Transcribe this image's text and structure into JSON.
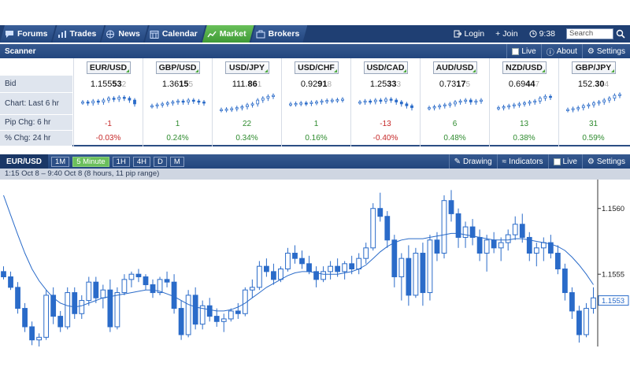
{
  "nav": {
    "tabs": [
      {
        "label": "Forums",
        "icon": "forums-icon"
      },
      {
        "label": "Trades",
        "icon": "trades-icon"
      },
      {
        "label": "News",
        "icon": "globe-icon"
      },
      {
        "label": "Calendar",
        "icon": "calendar-icon"
      },
      {
        "label": "Market",
        "icon": "market-chart-icon",
        "active": true
      },
      {
        "label": "Brokers",
        "icon": "brokers-icon"
      }
    ],
    "login": "Login",
    "join": "Join",
    "time": "9:38",
    "search_placeholder": "Search"
  },
  "scanner": {
    "title": "Scanner",
    "live": "Live",
    "about": "About",
    "settings": "Settings",
    "row_labels": [
      "Bid",
      "Chart: Last 6 hr",
      "Pip Chg: 6 hr",
      "% Chg: 24 hr"
    ],
    "pairs": [
      {
        "symbol": "EUR/USD",
        "bid_main": "1.155",
        "bid_pip": "53",
        "bid_tail": "2",
        "pip_chg": "-1",
        "pct_chg": "-0.03%",
        "spark": [
          0.5,
          0.45,
          0.55,
          0.5,
          0.6,
          0.7,
          0.65,
          0.75,
          0.7,
          0.6,
          0.4
        ]
      },
      {
        "symbol": "GBP/USD",
        "bid_main": "1.36",
        "bid_pip": "15",
        "bid_tail": "5",
        "pip_chg": "1",
        "pct_chg": "0.24%",
        "spark": [
          0.3,
          0.35,
          0.4,
          0.45,
          0.5,
          0.55,
          0.5,
          0.6,
          0.55,
          0.5,
          0.45
        ]
      },
      {
        "symbol": "USD/JPY",
        "bid_main": "111.",
        "bid_pip": "86",
        "bid_tail": "1",
        "pip_chg": "22",
        "pct_chg": "0.34%",
        "spark": [
          0.1,
          0.12,
          0.15,
          0.2,
          0.25,
          0.35,
          0.4,
          0.6,
          0.7,
          0.8,
          0.85
        ]
      },
      {
        "symbol": "USD/CHF",
        "bid_main": "0.92",
        "bid_pip": "91",
        "bid_tail": "8",
        "pip_chg": "1",
        "pct_chg": "0.16%",
        "spark": [
          0.4,
          0.42,
          0.45,
          0.43,
          0.48,
          0.5,
          0.55,
          0.58,
          0.6,
          0.62,
          0.65
        ]
      },
      {
        "symbol": "USD/CAD",
        "bid_main": "1.25",
        "bid_pip": "33",
        "bid_tail": "3",
        "pip_chg": "-13",
        "pct_chg": "-0.40%",
        "spark": [
          0.5,
          0.55,
          0.52,
          0.6,
          0.55,
          0.65,
          0.6,
          0.5,
          0.4,
          0.3,
          0.2
        ]
      },
      {
        "symbol": "AUD/USD",
        "bid_main": "0.73",
        "bid_pip": "17",
        "bid_tail": "5",
        "pip_chg": "6",
        "pct_chg": "0.48%",
        "spark": [
          0.2,
          0.25,
          0.3,
          0.35,
          0.4,
          0.5,
          0.55,
          0.6,
          0.5,
          0.55,
          0.6
        ]
      },
      {
        "symbol": "NZD/USD",
        "bid_main": "0.69",
        "bid_pip": "44",
        "bid_tail": "7",
        "pip_chg": "13",
        "pct_chg": "0.38%",
        "spark": [
          0.2,
          0.25,
          0.3,
          0.35,
          0.4,
          0.45,
          0.5,
          0.55,
          0.7,
          0.8,
          0.75
        ]
      },
      {
        "symbol": "GBP/JPY",
        "bid_main": "152.",
        "bid_pip": "30",
        "bid_tail": "4",
        "pip_chg": "31",
        "pct_chg": "0.59%",
        "spark": [
          0.1,
          0.15,
          0.2,
          0.3,
          0.35,
          0.45,
          0.5,
          0.6,
          0.7,
          0.85,
          0.9
        ]
      }
    ]
  },
  "chart_toolbar": {
    "pair": "EUR/USD",
    "timeframes": [
      {
        "label": "1M"
      },
      {
        "label": "5 Minute",
        "active": true
      },
      {
        "label": "1H"
      },
      {
        "label": "4H"
      },
      {
        "label": "D"
      },
      {
        "label": "M"
      }
    ],
    "drawing": "Drawing",
    "indicators": "Indicators",
    "live": "Live",
    "settings": "Settings",
    "range_text": "1:15 Oct 8 – 9:40 Oct 8 (8 hours, 11 pip range)"
  },
  "chart_data": {
    "type": "candlestick",
    "symbol": "EUR/USD",
    "y_ticks": [
      1.1555,
      1.156
    ],
    "last_price": "1.1553",
    "ylim": [
      1.15495,
      1.15622
    ],
    "candles": [
      [
        1.15552,
        1.15556,
        1.15546,
        1.15548
      ],
      [
        1.15548,
        1.15552,
        1.15538,
        1.1554
      ],
      [
        1.1554,
        1.15544,
        1.1552,
        1.15524
      ],
      [
        1.15524,
        1.15528,
        1.15506,
        1.1551
      ],
      [
        1.1551,
        1.15514,
        1.15496,
        1.155
      ],
      [
        1.155,
        1.15505,
        1.15494,
        1.15502
      ],
      [
        1.15502,
        1.15538,
        1.155,
        1.15534
      ],
      [
        1.15534,
        1.1554,
        1.15512,
        1.15518
      ],
      [
        1.15518,
        1.15522,
        1.15506,
        1.1551
      ],
      [
        1.1551,
        1.1554,
        1.15508,
        1.15536
      ],
      [
        1.15536,
        1.1554,
        1.15516,
        1.1552
      ],
      [
        1.1552,
        1.15534,
        1.15516,
        1.1553
      ],
      [
        1.1553,
        1.15548,
        1.15526,
        1.15544
      ],
      [
        1.15544,
        1.15548,
        1.15528,
        1.15532
      ],
      [
        1.15532,
        1.15542,
        1.15524,
        1.15538
      ],
      [
        1.15538,
        1.15546,
        1.15506,
        1.1551
      ],
      [
        1.1551,
        1.1554,
        1.15508,
        1.15536
      ],
      [
        1.15536,
        1.1555,
        1.15534,
        1.15546
      ],
      [
        1.15546,
        1.15552,
        1.1554,
        1.1555
      ],
      [
        1.1555,
        1.15554,
        1.15544,
        1.15548
      ],
      [
        1.15548,
        1.1555,
        1.15538,
        1.15542
      ],
      [
        1.15542,
        1.15546,
        1.15532,
        1.15536
      ],
      [
        1.15536,
        1.15548,
        1.15534,
        1.15546
      ],
      [
        1.15546,
        1.15552,
        1.1554,
        1.15544
      ],
      [
        1.15544,
        1.1555,
        1.1552,
        1.15524
      ],
      [
        1.15524,
        1.1553,
        1.155,
        1.15504
      ],
      [
        1.15504,
        1.15538,
        1.15502,
        1.15534
      ],
      [
        1.15534,
        1.1554,
        1.15508,
        1.15512
      ],
      [
        1.15512,
        1.1553,
        1.15508,
        1.15526
      ],
      [
        1.15526,
        1.15532,
        1.15514,
        1.15518
      ],
      [
        1.15518,
        1.15524,
        1.1551,
        1.15514
      ],
      [
        1.15514,
        1.1552,
        1.15506,
        1.15516
      ],
      [
        1.15516,
        1.15524,
        1.15514,
        1.15522
      ],
      [
        1.15522,
        1.15528,
        1.15516,
        1.1552
      ],
      [
        1.1552,
        1.1554,
        1.15518,
        1.15538
      ],
      [
        1.15538,
        1.15546,
        1.15532,
        1.1554
      ],
      [
        1.1554,
        1.1556,
        1.15538,
        1.15556
      ],
      [
        1.15556,
        1.15562,
        1.15548,
        1.15552
      ],
      [
        1.15552,
        1.15558,
        1.15542,
        1.15546
      ],
      [
        1.15546,
        1.15556,
        1.15544,
        1.15554
      ],
      [
        1.15554,
        1.1557,
        1.15552,
        1.15566
      ],
      [
        1.15566,
        1.15572,
        1.15558,
        1.15562
      ],
      [
        1.15562,
        1.15568,
        1.15554,
        1.15558
      ],
      [
        1.15558,
        1.15564,
        1.1555,
        1.15552
      ],
      [
        1.15552,
        1.15556,
        1.1554,
        1.15546
      ],
      [
        1.15546,
        1.15556,
        1.15544,
        1.15552
      ],
      [
        1.15552,
        1.1556,
        1.15546,
        1.15556
      ],
      [
        1.15556,
        1.15562,
        1.15548,
        1.15552
      ],
      [
        1.15552,
        1.1556,
        1.15546,
        1.15558
      ],
      [
        1.15558,
        1.15564,
        1.1555,
        1.15554
      ],
      [
        1.15554,
        1.15566,
        1.1555,
        1.15562
      ],
      [
        1.15562,
        1.15574,
        1.15558,
        1.1557
      ],
      [
        1.1557,
        1.15604,
        1.15568,
        1.156
      ],
      [
        1.156,
        1.15612,
        1.1559,
        1.15594
      ],
      [
        1.15594,
        1.15598,
        1.1557,
        1.15576
      ],
      [
        1.15576,
        1.1558,
        1.1554,
        1.15548
      ],
      [
        1.15548,
        1.15566,
        1.1553,
        1.15562
      ],
      [
        1.15562,
        1.15572,
        1.15526,
        1.15534
      ],
      [
        1.15534,
        1.1557,
        1.15532,
        1.15566
      ],
      [
        1.15566,
        1.15574,
        1.15526,
        1.15536
      ],
      [
        1.15536,
        1.1558,
        1.1553,
        1.15576
      ],
      [
        1.15576,
        1.15582,
        1.1556,
        1.15566
      ],
      [
        1.15566,
        1.1561,
        1.15562,
        1.15606
      ],
      [
        1.15606,
        1.15614,
        1.1559,
        1.15596
      ],
      [
        1.15596,
        1.156,
        1.1557,
        1.15578
      ],
      [
        1.15578,
        1.1559,
        1.1557,
        1.15586
      ],
      [
        1.15586,
        1.15592,
        1.15572,
        1.15578
      ],
      [
        1.15578,
        1.15584,
        1.1556,
        1.15566
      ],
      [
        1.15566,
        1.1558,
        1.15552,
        1.15576
      ],
      [
        1.15576,
        1.15582,
        1.15566,
        1.1557
      ],
      [
        1.1557,
        1.15578,
        1.1556,
        1.15574
      ],
      [
        1.15574,
        1.15584,
        1.15568,
        1.1558
      ],
      [
        1.1558,
        1.15594,
        1.15576,
        1.15588
      ],
      [
        1.15588,
        1.15596,
        1.15574,
        1.15578
      ],
      [
        1.15578,
        1.15582,
        1.1556,
        1.15566
      ],
      [
        1.15566,
        1.15574,
        1.15556,
        1.1557
      ],
      [
        1.1557,
        1.15578,
        1.1556,
        1.15574
      ],
      [
        1.15574,
        1.1558,
        1.15562,
        1.15566
      ],
      [
        1.15566,
        1.15572,
        1.1555,
        1.15554
      ],
      [
        1.15554,
        1.15558,
        1.1553,
        1.15536
      ],
      [
        1.15536,
        1.1554,
        1.15516,
        1.15522
      ],
      [
        1.15522,
        1.15526,
        1.15498,
        1.15504
      ],
      [
        1.15504,
        1.15528,
        1.15502,
        1.15524
      ],
      [
        1.15524,
        1.1554,
        1.1552,
        1.15532
      ]
    ],
    "ma": [
      1.1561,
      1.15595,
      1.1558,
      1.15566,
      1.15554,
      1.15545,
      1.15538,
      1.15532,
      1.15528,
      1.15526,
      1.15525,
      1.15526,
      1.15528,
      1.1553,
      1.15532,
      1.15533,
      1.15534,
      1.15535,
      1.15536,
      1.15537,
      1.15538,
      1.15538,
      1.15537,
      1.15535,
      1.15533,
      1.1553,
      1.15527,
      1.15525,
      1.15524,
      1.15523,
      1.15522,
      1.15522,
      1.15523,
      1.15525,
      1.15528,
      1.15532,
      1.15536,
      1.1554,
      1.15543,
      1.15546,
      1.15549,
      1.15551,
      1.15552,
      1.15552,
      1.15551,
      1.1555,
      1.1555,
      1.1555,
      1.15551,
      1.15552,
      1.15554,
      1.15557,
      1.15562,
      1.15567,
      1.15571,
      1.15574,
      1.15576,
      1.15577,
      1.15577,
      1.15577,
      1.15578,
      1.15579,
      1.1558,
      1.15581,
      1.15581,
      1.1558,
      1.15579,
      1.15578,
      1.15577,
      1.15576,
      1.15576,
      1.15576,
      1.15577,
      1.15577,
      1.15576,
      1.15575,
      1.15574,
      1.15573,
      1.15571,
      1.15568,
      1.15563,
      1.15557,
      1.1555,
      1.15542
    ]
  },
  "colors": {
    "nav_bg": "#1f3f73",
    "active_tab": "#4fae43",
    "candle": "#2a6bc9",
    "negative": "#c62828",
    "positive": "#2e8b2e"
  }
}
